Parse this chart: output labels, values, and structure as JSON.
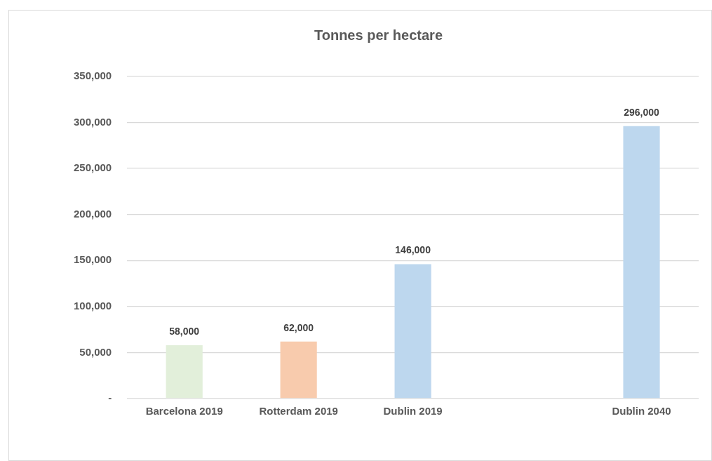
{
  "chart_data": {
    "type": "bar",
    "title": "Tonnes per hectare",
    "categories": [
      "Barcelona 2019",
      "Rotterdam 2019",
      "Dublin 2019",
      null,
      "Dublin 2040"
    ],
    "values": [
      58000,
      62000,
      146000,
      null,
      296000
    ],
    "colors": [
      "#e2efda",
      "#f8cbad",
      "#bdd7ee",
      null,
      "#bdd7ee"
    ],
    "ylim": [
      0,
      350000
    ],
    "yticks": [
      {
        "value": 0,
        "label": "-"
      },
      {
        "value": 50000,
        "label": "50,000"
      },
      {
        "value": 100000,
        "label": "100,000"
      },
      {
        "value": 150000,
        "label": "150,000"
      },
      {
        "value": 200000,
        "label": "200,000"
      },
      {
        "value": 250000,
        "label": "250,000"
      },
      {
        "value": 300000,
        "label": "300,000"
      },
      {
        "value": 350000,
        "label": "350,000"
      }
    ],
    "grid": "y",
    "legend": false,
    "value_labels": [
      "58,000",
      "62,000",
      "146,000",
      null,
      "296,000"
    ]
  }
}
